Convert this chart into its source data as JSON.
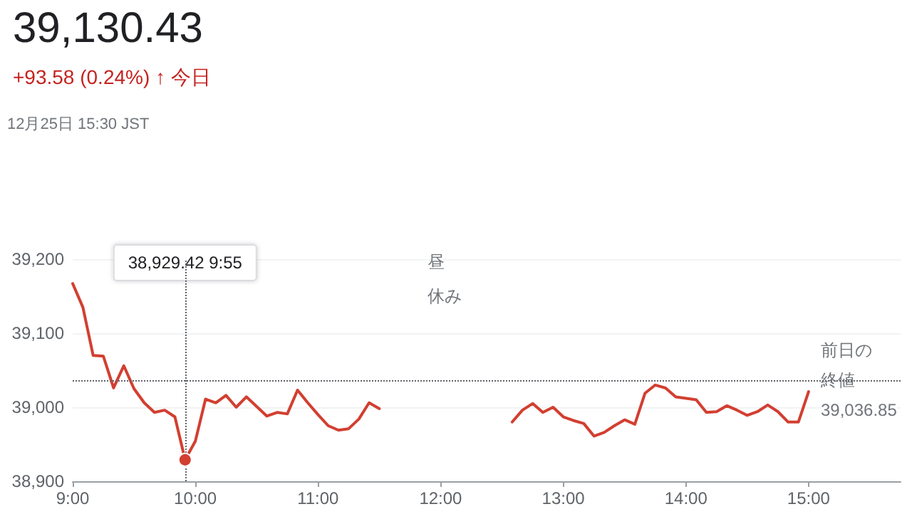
{
  "chart_data": {
    "type": "line",
    "title": "39,130.43",
    "subtitle": "+93.58 (0.24%) ↑ 今日",
    "annotations": [
      "12月25日 15:30 JST",
      "38,929.42 9:55",
      "昼休み"
    ],
    "x": [
      9,
      9.0833,
      9.1667,
      9.25,
      9.3333,
      9.4167,
      9.5,
      9.5833,
      9.6667,
      9.75,
      9.8333,
      9.9167,
      10,
      10.0833,
      10.1667,
      10.25,
      10.3333,
      10.4167,
      10.5,
      10.5833,
      10.6667,
      10.75,
      10.8333,
      10.9167,
      11,
      11.0833,
      11.1667,
      11.25,
      11.3333,
      11.4167,
      11.5,
      12,
      12.5833,
      12.6667,
      12.75,
      12.8333,
      12.9167,
      13,
      13.0833,
      13.1667,
      13.25,
      13.3333,
      13.4167,
      13.5,
      13.5833,
      13.6667,
      13.75,
      13.8333,
      13.9167,
      14,
      14.0833,
      14.1667,
      14.25,
      14.3333,
      14.4167,
      14.5,
      14.5833,
      14.6667,
      14.75,
      14.8333,
      14.9167,
      15
    ],
    "series": [
      {
        "color": "#d23f31",
        "values": [
          39167,
          39135,
          39070,
          39069,
          39026,
          39056,
          39025,
          39006,
          38993,
          38996,
          38987,
          38929,
          38954,
          39011,
          39006,
          39016,
          39000,
          39014,
          39001,
          38988,
          38993,
          38991,
          39023,
          39006,
          38990,
          38975,
          38969,
          38971,
          38984,
          39006,
          38998,
          null,
          38980,
          38996,
          39005,
          38993,
          39000,
          38987,
          38982,
          38978,
          38961,
          38966,
          38975,
          38983,
          38977,
          39019,
          39030,
          39026,
          39014,
          39012,
          39010,
          38993,
          38994,
          39002,
          38996,
          38989,
          38994,
          39003,
          38994,
          38980,
          38980,
          39021
        ]
      }
    ],
    "xlim": [
      9,
      15.75
    ],
    "xticks": [
      {
        "value": 9,
        "label": "9:00"
      },
      {
        "value": 10,
        "label": "10:00"
      },
      {
        "value": 11,
        "label": "11:00"
      },
      {
        "value": 12,
        "label": "12:00"
      },
      {
        "value": 13,
        "label": "13:00"
      },
      {
        "value": 14,
        "label": "14:00"
      },
      {
        "value": 15,
        "label": "15:00"
      }
    ],
    "ylim": [
      38900,
      39200
    ],
    "yticks": [
      {
        "value": 38900,
        "label": "38,900"
      },
      {
        "value": 39000,
        "label": "39,000"
      },
      {
        "value": 39100,
        "label": "39,100"
      },
      {
        "value": 39200,
        "label": "39,200"
      }
    ],
    "ref_lines": [
      {
        "axis": "y",
        "value": 39036.85,
        "label": "前日の終値\n39,036.85",
        "line_style": "dotted"
      },
      {
        "axis": "x",
        "value": 9.9167,
        "line_style": "dotted"
      }
    ],
    "grid": "y",
    "marker": "none",
    "line_style": "solid"
  }
}
